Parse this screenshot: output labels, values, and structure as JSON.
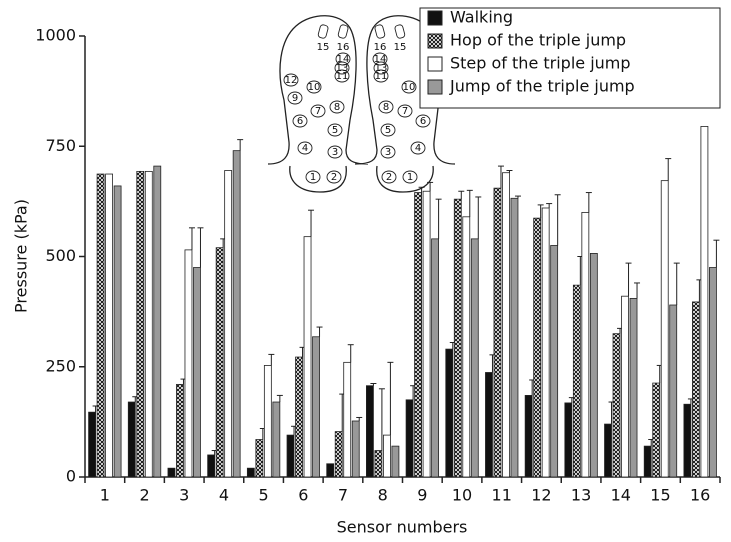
{
  "chart_data": {
    "type": "bar",
    "x_label": "Sensor numbers",
    "y_label": "Pressure (kPa)",
    "categories": [
      "1",
      "2",
      "3",
      "4",
      "5",
      "6",
      "7",
      "8",
      "9",
      "10",
      "11",
      "12",
      "13",
      "14",
      "15",
      "16"
    ],
    "series": [
      {
        "name": "Walking",
        "color": "#111111",
        "values": [
          147,
          170,
          20,
          50,
          20,
          95,
          30,
          207,
          175,
          290,
          237,
          185,
          168,
          120,
          70,
          165
        ],
        "errors": [
          14,
          12,
          null,
          10,
          null,
          20,
          null,
          5,
          32,
          15,
          40,
          35,
          12,
          50,
          15,
          12
        ]
      },
      {
        "name": "Hop of the triple jump",
        "color": "#000000",
        "pattern": "crosshatch",
        "values": [
          687,
          693,
          210,
          520,
          85,
          272,
          103,
          60,
          645,
          630,
          655,
          587,
          435,
          325,
          213,
          397
        ],
        "errors": [
          null,
          null,
          12,
          20,
          25,
          22,
          85,
          140,
          12,
          18,
          50,
          30,
          65,
          12,
          40,
          50
        ]
      },
      {
        "name": "Step of the triple jump",
        "color": "#ffffff",
        "values": [
          687,
          693,
          515,
          695,
          253,
          545,
          260,
          95,
          648,
          590,
          690,
          610,
          600,
          410,
          672,
          795
        ],
        "errors": [
          null,
          null,
          50,
          null,
          25,
          60,
          40,
          165,
          20,
          60,
          5,
          10,
          45,
          75,
          50,
          null
        ]
      },
      {
        "name": "Jump of the triple jump",
        "color": "#999999",
        "values": [
          660,
          705,
          475,
          740,
          170,
          318,
          127,
          70,
          540,
          540,
          632,
          525,
          507,
          405,
          390,
          475
        ],
        "errors": [
          null,
          null,
          90,
          25,
          15,
          22,
          8,
          null,
          90,
          95,
          5,
          115,
          null,
          35,
          95,
          62
        ]
      }
    ],
    "ylim": [
      0,
      1000
    ],
    "yticks": [
      0,
      250,
      500,
      750,
      {
        "value": 1000,
        "label": "1000"
      }
    ],
    "legend": "upper right",
    "inset": {
      "labels": [
        "1",
        "2",
        "3",
        "4",
        "5",
        "6",
        "7",
        "8",
        "9",
        "10",
        "11",
        "12",
        "13",
        "14",
        "15",
        "16"
      ]
    }
  }
}
